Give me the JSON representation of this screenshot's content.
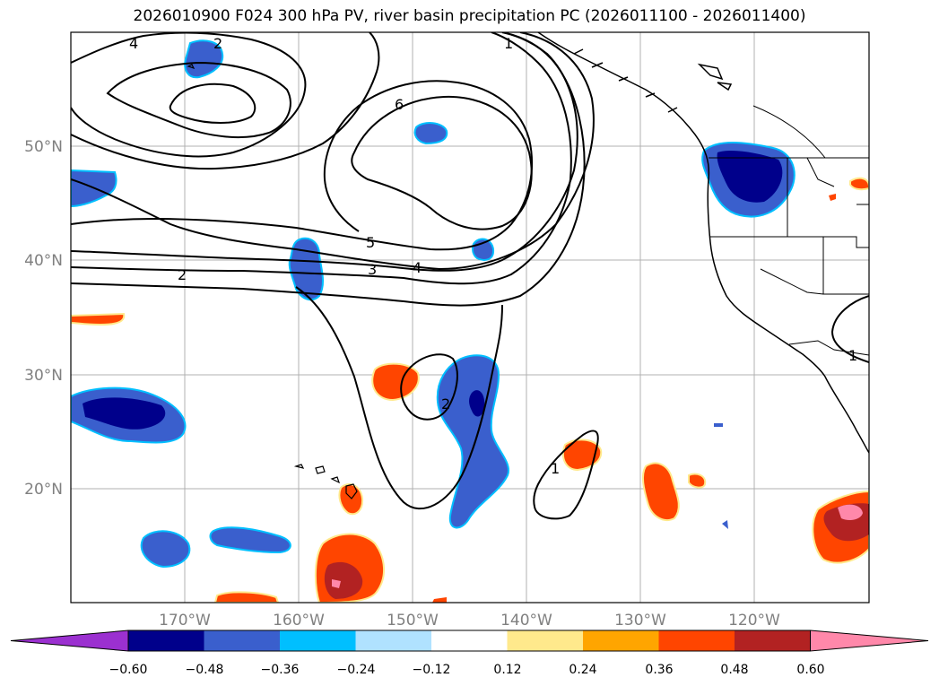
{
  "title": "2026010900 F024 300 hPa PV, river basin precipitation PC (2026011100 - 2026011400)",
  "map": {
    "lat_labels": [
      "50°N",
      "40°N",
      "30°N",
      "20°N"
    ],
    "lon_labels": [
      "170°W",
      "160°W",
      "150°W",
      "140°W",
      "130°W",
      "120°W"
    ],
    "contour_labels": [
      "4",
      "2",
      "1",
      "6",
      "5",
      "3",
      "4",
      "2",
      "2",
      "1",
      "1"
    ],
    "colors": {
      "contour": "#000000",
      "grid": "#b0b0b0",
      "coast": "#000000"
    }
  },
  "colorbar": {
    "ticks": [
      "−0.60",
      "−0.48",
      "−0.36",
      "−0.24",
      "−0.12",
      "0.12",
      "0.24",
      "0.36",
      "0.48",
      "0.60"
    ],
    "colors": [
      "#9b30d0",
      "#00008b",
      "#3a5fcd",
      "#00bfff",
      "#b0e2ff",
      "#ffffff",
      "#ffe98c",
      "#ffa500",
      "#ff4500",
      "#b22222",
      "#ff88aa"
    ]
  }
}
